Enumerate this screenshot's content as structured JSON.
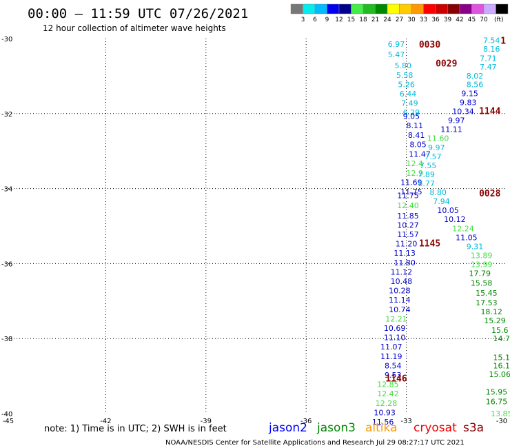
{
  "header": {
    "title": "00:00 – 11:59 UTC 07/26/2021",
    "subtitle": "12 hour collection of altimeter wave heights"
  },
  "colorbar": {
    "unit": "(ft)",
    "colors": [
      "#777777",
      "#00eeee",
      "#00bbff",
      "#0000ee",
      "#00008b",
      "#44ee44",
      "#22bb22",
      "#008800",
      "#ffff00",
      "#ffcc00",
      "#ff9900",
      "#ff0000",
      "#cc0000",
      "#880000",
      "#880088",
      "#dd55dd",
      "#ccaaff",
      "#000000"
    ],
    "labels": [
      "3",
      "6",
      "9",
      "12",
      "15",
      "18",
      "21",
      "24",
      "27",
      "30",
      "33",
      "36",
      "39",
      "42",
      "45",
      "70"
    ]
  },
  "footer": {
    "note": "note:  1) Time is in UTC;  2) SWH is in feet",
    "satellites": [
      {
        "name": "jason2",
        "color": "#0000ff"
      },
      {
        "name": "jason3",
        "color": "#008800"
      },
      {
        "name": "altika",
        "color": "#ff9900"
      },
      {
        "name": "cryosat",
        "color": "#ee0000"
      },
      {
        "name": "s3a",
        "color": "#880000"
      }
    ],
    "credit": "NOAA/NESDIS Center for Satellite Applications and Research     Jul 29 08:27:17 UTC 2021"
  },
  "chart_data": {
    "type": "scatter",
    "xlim": [
      -45,
      -30
    ],
    "ylim": [
      -40,
      -30
    ],
    "x_ticks": [
      "-45",
      "-42",
      "-39",
      "-36",
      "-33",
      "-30"
    ],
    "y_ticks": [
      "-30",
      "-32",
      "-34",
      "-36",
      "-38",
      "-40"
    ],
    "grid": true,
    "series": [
      {
        "points": [
          {
            "x": -33.3,
            "y": -30.15,
            "v": "6.97",
            "c": "#00bbdd"
          },
          {
            "x": -33.3,
            "y": -30.42,
            "v": "5.47",
            "c": "#00bbdd"
          },
          {
            "x": -33.1,
            "y": -30.72,
            "v": "5.80",
            "c": "#00bbdd"
          },
          {
            "x": -33.05,
            "y": -30.97,
            "v": "5.58",
            "c": "#00bbdd"
          },
          {
            "x": -33.0,
            "y": -31.22,
            "v": "5.26",
            "c": "#00bbdd"
          },
          {
            "x": -32.95,
            "y": -31.47,
            "v": "6.44",
            "c": "#00bbdd"
          },
          {
            "x": -32.9,
            "y": -31.72,
            "v": "7.49",
            "c": "#00bbdd"
          },
          {
            "x": -32.85,
            "y": -31.97,
            "v": "6.29",
            "c": "#00bbdd"
          },
          {
            "x": -32.85,
            "y": -32.07,
            "v": "9.05",
            "c": "#0000cc"
          },
          {
            "x": -32.75,
            "y": -32.32,
            "v": "8.11",
            "c": "#0000cc"
          },
          {
            "x": -32.7,
            "y": -32.57,
            "v": "8.41",
            "c": "#0000cc"
          },
          {
            "x": -32.65,
            "y": -32.82,
            "v": "8.05",
            "c": "#0000cc"
          },
          {
            "x": -32.6,
            "y": -33.08,
            "v": "11.47",
            "c": "#0000cc"
          },
          {
            "x": -32.75,
            "y": -33.33,
            "v": "12.4",
            "c": "#44dd44"
          },
          {
            "x": -32.75,
            "y": -33.58,
            "v": "12.9",
            "c": "#44dd44"
          },
          {
            "x": -32.85,
            "y": -33.83,
            "v": "11.69",
            "c": "#0000cc"
          },
          {
            "x": -32.85,
            "y": -34.08,
            "v": "11.75",
            "c": "#0000cc"
          },
          {
            "x": -32.95,
            "y": -34.18,
            "v": "11.75",
            "c": "#0000cc"
          },
          {
            "x": -32.95,
            "y": -34.45,
            "v": "12.40",
            "c": "#44dd44"
          },
          {
            "x": -32.95,
            "y": -34.72,
            "v": "11.85",
            "c": "#0000cc"
          },
          {
            "x": -32.95,
            "y": -34.97,
            "v": "10.27",
            "c": "#0000cc"
          },
          {
            "x": -32.95,
            "y": -35.22,
            "v": "11.57",
            "c": "#0000cc"
          },
          {
            "x": -33.0,
            "y": -35.47,
            "v": "11.20",
            "c": "#0000cc"
          },
          {
            "x": -33.05,
            "y": -35.72,
            "v": "11.13",
            "c": "#0000cc"
          },
          {
            "x": -33.05,
            "y": -35.97,
            "v": "11.80",
            "c": "#0000cc"
          },
          {
            "x": -33.15,
            "y": -36.22,
            "v": "11.12",
            "c": "#0000cc"
          },
          {
            "x": -33.15,
            "y": -36.47,
            "v": "10.48",
            "c": "#0000cc"
          },
          {
            "x": -33.2,
            "y": -36.72,
            "v": "10.28",
            "c": "#0000cc"
          },
          {
            "x": -33.2,
            "y": -36.97,
            "v": "11.14",
            "c": "#0000cc"
          },
          {
            "x": -33.2,
            "y": -37.22,
            "v": "10.74",
            "c": "#0000cc"
          },
          {
            "x": -33.3,
            "y": -37.47,
            "v": "12.21",
            "c": "#44dd44"
          },
          {
            "x": -33.35,
            "y": -37.72,
            "v": "10.69",
            "c": "#0000cc"
          },
          {
            "x": -33.35,
            "y": -37.97,
            "v": "11.10",
            "c": "#0000cc"
          },
          {
            "x": -33.45,
            "y": -38.22,
            "v": "11.07",
            "c": "#0000cc"
          },
          {
            "x": -33.45,
            "y": -38.47,
            "v": "11.19",
            "c": "#0000cc"
          },
          {
            "x": -33.4,
            "y": -38.72,
            "v": "8.54",
            "c": "#0000cc"
          },
          {
            "x": -33.4,
            "y": -38.97,
            "v": "9.53",
            "c": "#0000cc"
          },
          {
            "x": -33.55,
            "y": -39.22,
            "v": "12.85",
            "c": "#44dd44"
          },
          {
            "x": -33.55,
            "y": -39.47,
            "v": "12.42",
            "c": "#44dd44"
          },
          {
            "x": -33.6,
            "y": -39.72,
            "v": "12.28",
            "c": "#44dd44"
          },
          {
            "x": -33.65,
            "y": -39.97,
            "v": "10.93",
            "c": "#0000cc"
          },
          {
            "x": -33.7,
            "y": -40.22,
            "v": "11.56",
            "c": "#0000cc"
          },
          {
            "x": -30.45,
            "y": -30.05,
            "v": "7.54",
            "c": "#00bbdd"
          },
          {
            "x": -30.45,
            "y": -30.28,
            "v": "8.16",
            "c": "#00bbdd"
          },
          {
            "x": -30.55,
            "y": -30.52,
            "v": "7.71",
            "c": "#00bbdd"
          },
          {
            "x": -30.55,
            "y": -30.75,
            "v": "7.47",
            "c": "#00bbdd"
          },
          {
            "x": -30.95,
            "y": -30.99,
            "v": "8.02",
            "c": "#00bbdd"
          },
          {
            "x": -30.95,
            "y": -31.22,
            "v": "8.56",
            "c": "#00bbdd"
          },
          {
            "x": -31.1,
            "y": -31.46,
            "v": "9.15",
            "c": "#0000cc"
          },
          {
            "x": -31.15,
            "y": -31.7,
            "v": "9.83",
            "c": "#0000cc"
          },
          {
            "x": -31.3,
            "y": -31.94,
            "v": "10.34",
            "c": "#0000cc"
          },
          {
            "x": -31.5,
            "y": -32.18,
            "v": "9.97",
            "c": "#0000cc"
          },
          {
            "x": -31.65,
            "y": -32.42,
            "v": "11.11",
            "c": "#0000cc"
          },
          {
            "x": -32.05,
            "y": -32.66,
            "v": "11.60",
            "c": "#44dd44"
          },
          {
            "x": -32.1,
            "y": -32.9,
            "v": "9.97",
            "c": "#00bbdd"
          },
          {
            "x": -32.2,
            "y": -33.14,
            "v": "7.57",
            "c": "#00bbdd"
          },
          {
            "x": -32.35,
            "y": -33.38,
            "v": "7.55",
            "c": "#00bbdd"
          },
          {
            "x": -32.4,
            "y": -33.62,
            "v": "7.89",
            "c": "#00bbdd"
          },
          {
            "x": -32.4,
            "y": -33.86,
            "v": "8.77",
            "c": "#00bbdd"
          },
          {
            "x": -32.05,
            "y": -34.1,
            "v": "8.80",
            "c": "#00bbdd"
          },
          {
            "x": -31.95,
            "y": -34.34,
            "v": "7.94",
            "c": "#00bbdd"
          },
          {
            "x": -31.75,
            "y": -34.58,
            "v": "10.05",
            "c": "#0000cc"
          },
          {
            "x": -31.55,
            "y": -34.82,
            "v": "10.12",
            "c": "#0000cc"
          },
          {
            "x": -31.3,
            "y": -35.06,
            "v": "12.24",
            "c": "#44dd44"
          },
          {
            "x": -31.2,
            "y": -35.3,
            "v": "11.05",
            "c": "#0000cc"
          },
          {
            "x": -30.95,
            "y": -35.54,
            "v": "9.31",
            "c": "#00bbdd"
          },
          {
            "x": -30.75,
            "y": -35.78,
            "v": "13.89",
            "c": "#44dd44"
          },
          {
            "x": -30.75,
            "y": -36.02,
            "v": "13.99",
            "c": "#44dd44"
          },
          {
            "x": -30.8,
            "y": -36.26,
            "v": "17.79",
            "c": "#008800"
          },
          {
            "x": -30.75,
            "y": -36.52,
            "v": "15.58",
            "c": "#008800"
          },
          {
            "x": -30.6,
            "y": -36.78,
            "v": "15.45",
            "c": "#008800"
          },
          {
            "x": -30.6,
            "y": -37.04,
            "v": "17.53",
            "c": "#008800"
          },
          {
            "x": -30.45,
            "y": -37.28,
            "v": "18.12",
            "c": "#008800"
          },
          {
            "x": -30.35,
            "y": -37.52,
            "v": "15.29",
            "c": "#008800"
          },
          {
            "x": -30.2,
            "y": -37.78,
            "v": "15.6",
            "c": "#008800"
          },
          {
            "x": -30.3,
            "y": -39.42,
            "v": "15.95",
            "c": "#008800"
          },
          {
            "x": -30.3,
            "y": -39.68,
            "v": "16.75",
            "c": "#008800"
          },
          {
            "x": -30.2,
            "y": -38.95,
            "v": "15.06",
            "c": "#008800"
          },
          {
            "x": -30.15,
            "y": -38.72,
            "v": "16.1",
            "c": "#008800"
          },
          {
            "x": -30.15,
            "y": -38.5,
            "v": "15.1",
            "c": "#008800"
          },
          {
            "x": -30.15,
            "y": -38.0,
            "v": "14.7",
            "c": "#008800"
          },
          {
            "x": -30.15,
            "y": -40.0,
            "v": "13.85",
            "c": "#44dd44"
          }
        ]
      }
    ],
    "time_markers": [
      {
        "x": -32.3,
        "y": -30.15,
        "v": "0030"
      },
      {
        "x": -31.8,
        "y": -30.65,
        "v": "0029"
      },
      {
        "x": -30.5,
        "y": -31.92,
        "v": "1144"
      },
      {
        "x": -30.5,
        "y": -34.12,
        "v": "0028"
      },
      {
        "x": -32.3,
        "y": -35.45,
        "v": "1145"
      },
      {
        "x": -33.3,
        "y": -39.05,
        "v": "1146"
      },
      {
        "x": -30.1,
        "y": -30.05,
        "v": "1"
      }
    ]
  }
}
